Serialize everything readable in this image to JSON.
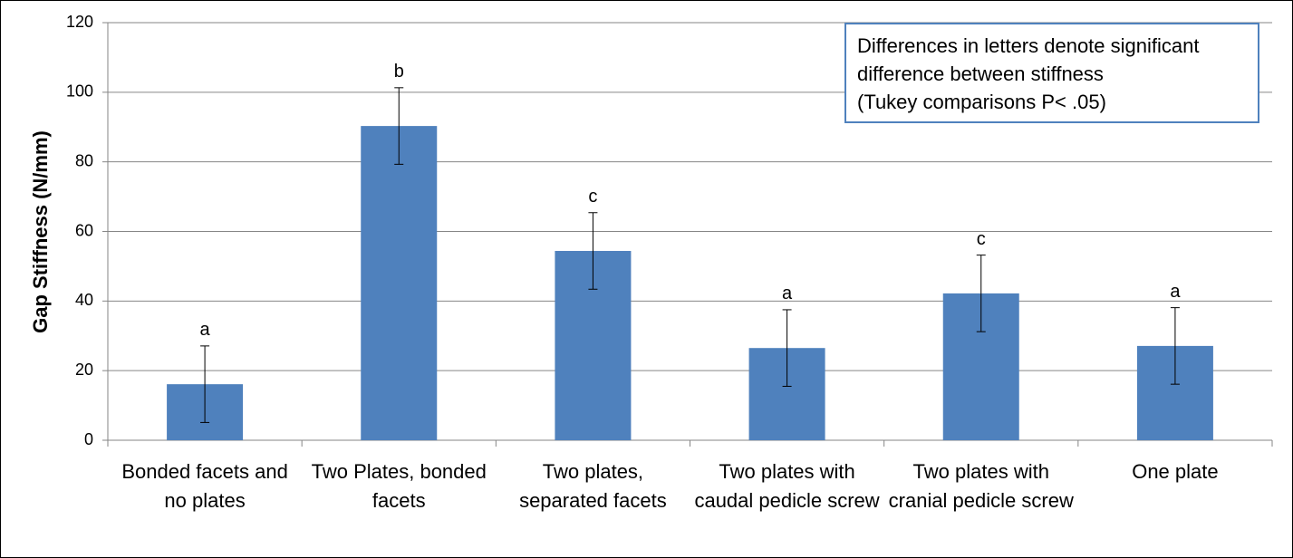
{
  "chart_data": {
    "type": "bar",
    "y_label": "Gap Stiffness (N/mm)",
    "categories": [
      "Bonded facets and no plates",
      "Two Plates, bonded facets",
      "Two plates, separated facets",
      "Two plates with caudal pedicle screw",
      "Two plates with cranial pedicle screw",
      "One plate"
    ],
    "series": [
      {
        "color": "#4f81bd",
        "values": [
          16.1,
          90.3,
          54.4,
          26.5,
          42.2,
          27.1
        ]
      }
    ],
    "errors": [
      11,
      11,
      11,
      11,
      11,
      11
    ],
    "bar_labels": [
      "a",
      "b",
      "c",
      "a",
      "c",
      "a"
    ],
    "annotation": [
      "Differences in letters denote significant",
      "difference between stiffness",
      "(Tukey comparisons P< .05)"
    ],
    "ylim": [
      0,
      120
    ],
    "yticks": [
      0,
      20,
      40,
      60,
      80,
      100,
      120
    ],
    "grid": true
  }
}
